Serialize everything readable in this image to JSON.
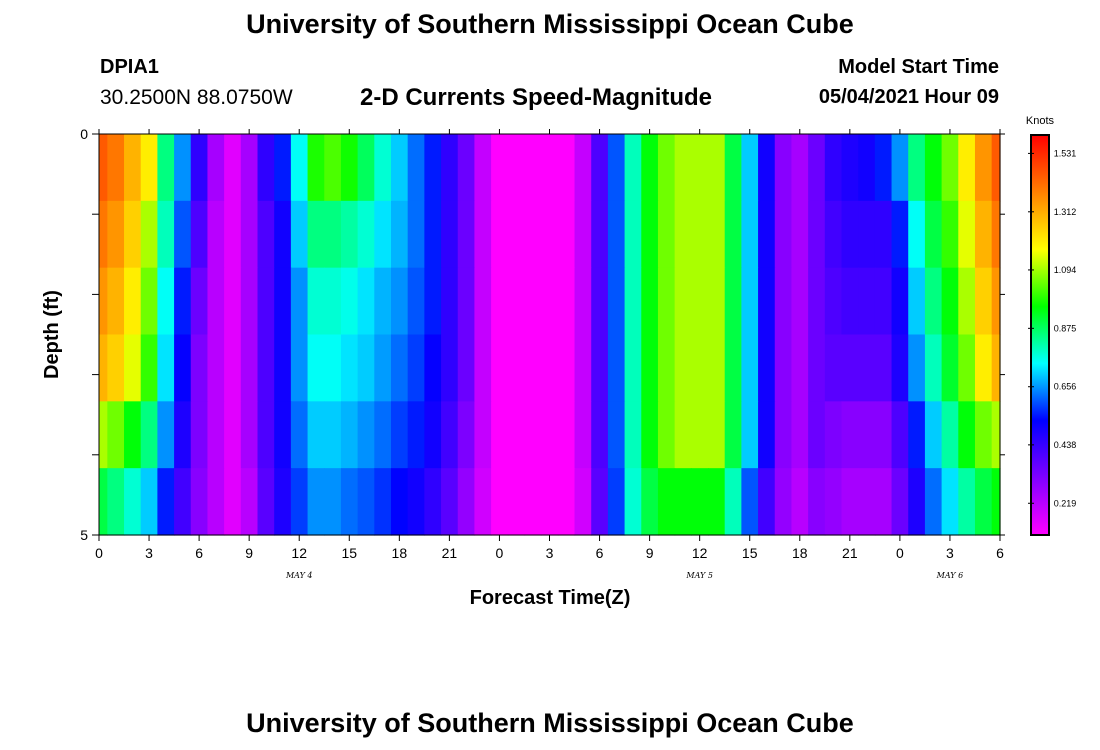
{
  "header": {
    "title": "University of Southern Mississippi Ocean Cube",
    "station_id": "DPIA1",
    "station_coords": "30.2500N  88.0750W",
    "chart_title": "2-D Currents Speed-Magnitude",
    "start_label": "Model Start Time",
    "start_value": "05/04/2021 Hour 09"
  },
  "footer": {
    "title": "University of Southern Mississippi Ocean Cube"
  },
  "chart_data": {
    "type": "heatmap",
    "title": "2-D Currents Speed-Magnitude",
    "xlabel": "Forecast Time(Z)",
    "ylabel": "Depth (ft)",
    "x_hours": [
      0,
      1,
      2,
      3,
      4,
      5,
      6,
      7,
      8,
      9,
      10,
      11,
      12,
      13,
      14,
      15,
      16,
      17,
      18,
      19,
      20,
      21,
      22,
      23,
      24,
      25,
      26,
      27,
      28,
      29,
      30,
      31,
      32,
      33,
      34,
      35,
      36,
      37,
      38,
      39,
      40,
      41,
      42,
      43,
      44,
      45,
      46,
      47,
      48,
      49,
      50,
      51,
      52,
      53,
      54
    ],
    "x_tick_labels": [
      "0",
      "3",
      "6",
      "9",
      "12",
      "15",
      "18",
      "21",
      "0",
      "3",
      "6",
      "9",
      "12",
      "15",
      "18",
      "21",
      "0",
      "3",
      "6"
    ],
    "day_labels": [
      {
        "label": "MAY 4",
        "hour": 12
      },
      {
        "label": "MAY 5",
        "hour": 36
      },
      {
        "label": "MAY 6",
        "hour": 51
      }
    ],
    "y_depths": [
      0,
      1,
      2,
      3,
      4,
      5
    ],
    "y_tick_labels": [
      "0",
      "5"
    ],
    "ylim": [
      0,
      5
    ],
    "colorbar": {
      "unit": "Knots",
      "min": 0.1,
      "max": 1.6,
      "tick_values": [
        0.219,
        0.438,
        0.656,
        0.875,
        1.094,
        1.312,
        1.531
      ],
      "tick_labels": [
        "0.219",
        "0.438",
        "0.656",
        "0.875",
        "1.094",
        "1.312",
        "1.531"
      ]
    },
    "speed_knots_by_depth": [
      [
        1.45,
        1.4,
        1.3,
        1.2,
        0.85,
        0.65,
        0.45,
        0.25,
        0.15,
        0.25,
        0.45,
        0.55,
        0.75,
        0.98,
        1.02,
        0.97,
        0.88,
        0.78,
        0.7,
        0.62,
        0.55,
        0.45,
        0.35,
        0.2,
        0.1,
        0.1,
        0.1,
        0.1,
        0.1,
        0.2,
        0.4,
        0.6,
        0.8,
        0.95,
        1.05,
        1.1,
        1.1,
        1.1,
        0.9,
        0.7,
        0.5,
        0.3,
        0.25,
        0.35,
        0.45,
        0.48,
        0.5,
        0.55,
        0.65,
        0.85,
        0.95,
        1.05,
        1.2,
        1.35,
        1.45
      ],
      [
        1.4,
        1.35,
        1.25,
        1.1,
        0.8,
        0.6,
        0.4,
        0.22,
        0.15,
        0.25,
        0.4,
        0.5,
        0.7,
        0.85,
        0.85,
        0.82,
        0.78,
        0.72,
        0.68,
        0.62,
        0.55,
        0.45,
        0.35,
        0.2,
        0.1,
        0.1,
        0.1,
        0.1,
        0.1,
        0.2,
        0.4,
        0.6,
        0.8,
        0.95,
        1.05,
        1.1,
        1.1,
        1.1,
        0.9,
        0.7,
        0.5,
        0.3,
        0.25,
        0.35,
        0.42,
        0.45,
        0.45,
        0.45,
        0.55,
        0.75,
        0.9,
        1.0,
        1.15,
        1.3,
        1.4
      ],
      [
        1.35,
        1.3,
        1.2,
        1.05,
        0.75,
        0.55,
        0.35,
        0.22,
        0.15,
        0.25,
        0.4,
        0.5,
        0.65,
        0.78,
        0.78,
        0.76,
        0.72,
        0.68,
        0.65,
        0.6,
        0.55,
        0.45,
        0.35,
        0.2,
        0.1,
        0.1,
        0.1,
        0.1,
        0.1,
        0.2,
        0.4,
        0.6,
        0.8,
        0.95,
        1.05,
        1.1,
        1.1,
        1.1,
        0.9,
        0.7,
        0.5,
        0.3,
        0.25,
        0.35,
        0.4,
        0.42,
        0.42,
        0.42,
        0.5,
        0.7,
        0.85,
        0.95,
        1.1,
        1.25,
        1.35
      ],
      [
        1.3,
        1.25,
        1.15,
        1.0,
        0.72,
        0.52,
        0.32,
        0.22,
        0.15,
        0.25,
        0.4,
        0.5,
        0.65,
        0.75,
        0.75,
        0.72,
        0.7,
        0.66,
        0.62,
        0.58,
        0.52,
        0.45,
        0.35,
        0.2,
        0.1,
        0.1,
        0.1,
        0.1,
        0.1,
        0.2,
        0.4,
        0.6,
        0.8,
        0.95,
        1.05,
        1.1,
        1.1,
        1.1,
        0.9,
        0.7,
        0.5,
        0.3,
        0.25,
        0.35,
        0.38,
        0.38,
        0.38,
        0.38,
        0.48,
        0.65,
        0.8,
        0.92,
        1.05,
        1.2,
        1.3
      ],
      [
        1.1,
        1.05,
        0.95,
        0.85,
        0.65,
        0.48,
        0.32,
        0.22,
        0.15,
        0.25,
        0.4,
        0.5,
        0.62,
        0.7,
        0.7,
        0.68,
        0.65,
        0.62,
        0.58,
        0.55,
        0.5,
        0.42,
        0.32,
        0.2,
        0.1,
        0.1,
        0.1,
        0.1,
        0.1,
        0.2,
        0.4,
        0.6,
        0.8,
        0.95,
        1.05,
        1.1,
        1.1,
        1.1,
        0.9,
        0.7,
        0.5,
        0.3,
        0.25,
        0.35,
        0.32,
        0.3,
        0.3,
        0.3,
        0.4,
        0.55,
        0.7,
        0.82,
        0.95,
        1.05,
        1.1
      ],
      [
        0.9,
        0.85,
        0.78,
        0.7,
        0.55,
        0.42,
        0.3,
        0.22,
        0.15,
        0.22,
        0.38,
        0.48,
        0.58,
        0.65,
        0.65,
        0.62,
        0.6,
        0.57,
        0.53,
        0.5,
        0.45,
        0.38,
        0.28,
        0.18,
        0.1,
        0.1,
        0.1,
        0.1,
        0.1,
        0.18,
        0.38,
        0.58,
        0.78,
        0.9,
        0.95,
        0.95,
        0.95,
        0.95,
        0.8,
        0.6,
        0.42,
        0.28,
        0.22,
        0.3,
        0.28,
        0.25,
        0.25,
        0.25,
        0.35,
        0.48,
        0.62,
        0.72,
        0.82,
        0.9,
        0.95
      ]
    ]
  }
}
